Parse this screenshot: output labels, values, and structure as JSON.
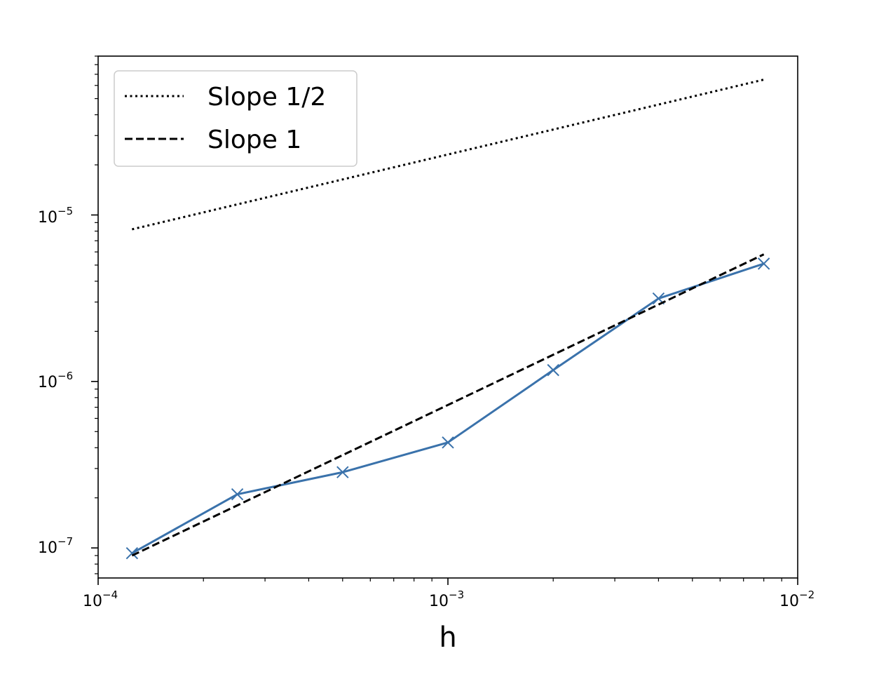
{
  "chart_data": {
    "type": "line",
    "xscale": "log",
    "yscale": "log",
    "xlabel": "h",
    "ylabel": "",
    "title": "",
    "xlim": [
      0.0001,
      0.01
    ],
    "ylim": [
      6.6e-08,
      9e-05
    ],
    "grid": false,
    "legend_position": "top-left",
    "x_ticks": [
      {
        "base": "10",
        "exp": "−4",
        "value": 0.0001
      },
      {
        "base": "10",
        "exp": "−3",
        "value": 0.001
      },
      {
        "base": "10",
        "exp": "−2",
        "value": 0.01
      }
    ],
    "y_ticks": [
      {
        "base": "10",
        "exp": "−7",
        "value": 1e-07
      },
      {
        "base": "10",
        "exp": "−6",
        "value": 1e-06
      },
      {
        "base": "10",
        "exp": "−5",
        "value": 1e-05
      }
    ],
    "series": [
      {
        "name": "",
        "style": "solid",
        "marker": "x",
        "color": "#3a72ab",
        "x": [
          0.000125,
          0.00025,
          0.0005,
          0.001,
          0.002,
          0.004,
          0.008
        ],
        "y": [
          9.3e-08,
          2.1e-07,
          2.85e-07,
          4.3e-07,
          1.17e-06,
          3.15e-06,
          5.1e-06
        ]
      },
      {
        "name": "Slope 1/2",
        "style": "dotted",
        "color": "#000000",
        "x": [
          0.000125,
          0.008
        ],
        "y": [
          8.2e-06,
          6.5e-05
        ]
      },
      {
        "name": "Slope 1",
        "style": "dashed",
        "color": "#000000",
        "x": [
          0.000125,
          0.008
        ],
        "y": [
          9e-08,
          5.8e-06
        ]
      }
    ]
  }
}
